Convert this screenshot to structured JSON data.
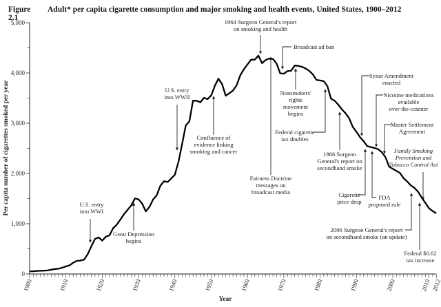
{
  "figure": {
    "number": "Figure 2.1",
    "title": "Adult* per capita cigarette consumption and major smoking and health events, United States, 1900–2012"
  },
  "chart_data": {
    "type": "line",
    "title": "Adult* per capita cigarette consumption and major smoking and health events, United States, 1900–2012",
    "xlabel": "Year",
    "ylabel": "Per capita number of cigarettes smoked per year",
    "xlim": [
      1900,
      2012
    ],
    "ylim": [
      0,
      5000
    ],
    "x_ticks": [
      "1900",
      "1910",
      "1920",
      "1930",
      "1940",
      "1950",
      "1960",
      "1970",
      "1980",
      "1990",
      "2000",
      "2010",
      "2012"
    ],
    "y_ticks": [
      "0",
      "1,000",
      "2,000",
      "3,000",
      "4,000",
      "5,000"
    ],
    "grid": false,
    "line_color": "#000000",
    "x": [
      1900,
      1901,
      1902,
      1903,
      1904,
      1905,
      1906,
      1907,
      1908,
      1909,
      1910,
      1911,
      1912,
      1913,
      1914,
      1915,
      1916,
      1917,
      1918,
      1919,
      1920,
      1921,
      1922,
      1923,
      1924,
      1925,
      1926,
      1927,
      1928,
      1929,
      1930,
      1931,
      1932,
      1933,
      1934,
      1935,
      1936,
      1937,
      1938,
      1939,
      1940,
      1941,
      1942,
      1943,
      1944,
      1945,
      1946,
      1947,
      1948,
      1949,
      1950,
      1951,
      1952,
      1953,
      1954,
      1955,
      1956,
      1957,
      1958,
      1959,
      1960,
      1961,
      1962,
      1963,
      1964,
      1965,
      1966,
      1967,
      1968,
      1969,
      1970,
      1971,
      1972,
      1973,
      1974,
      1975,
      1976,
      1977,
      1978,
      1979,
      1980,
      1981,
      1982,
      1983,
      1984,
      1985,
      1986,
      1987,
      1988,
      1989,
      1990,
      1991,
      1992,
      1993,
      1994,
      1995,
      1996,
      1997,
      1998,
      1999,
      2000,
      2001,
      2002,
      2003,
      2004,
      2005,
      2006,
      2007,
      2008,
      2009,
      2010,
      2011,
      2012
    ],
    "values": [
      54,
      53,
      60,
      64,
      66,
      70,
      86,
      99,
      105,
      125,
      151,
      173,
      223,
      260,
      267,
      285,
      395,
      551,
      697,
      727,
      665,
      742,
      770,
      911,
      982,
      1085,
      1191,
      1279,
      1366,
      1504,
      1485,
      1399,
      1245,
      1334,
      1483,
      1564,
      1754,
      1847,
      1830,
      1900,
      1976,
      2236,
      2585,
      2956,
      3039,
      3449,
      3446,
      3416,
      3505,
      3480,
      3552,
      3744,
      3886,
      3778,
      3546,
      3597,
      3650,
      3755,
      3953,
      4073,
      4171,
      4266,
      4265,
      4345,
      4194,
      4258,
      4287,
      4280,
      4186,
      3993,
      3985,
      4037,
      4043,
      4148,
      4141,
      4122,
      4091,
      4043,
      3970,
      3861,
      3851,
      3836,
      3739,
      3488,
      3446,
      3370,
      3274,
      3197,
      3096,
      2926,
      2828,
      2720,
      2641,
      2542,
      2524,
      2505,
      2482,
      2423,
      2320,
      2136,
      2092,
      2051,
      2008,
      1904,
      1838,
      1761,
      1712,
      1631,
      1515,
      1412,
      1305,
      1251,
      1207
    ],
    "annotations": [
      {
        "lines": [
          "U.S. entry",
          "into WWI"
        ],
        "year": 1917
      },
      {
        "lines": [
          "Great Depression",
          "begins"
        ],
        "year": 1929
      },
      {
        "lines": [
          "U.S. entry",
          "into WWII"
        ],
        "year": 1941
      },
      {
        "lines": [
          "Confluence of",
          "evidence linking",
          "smoking and cancer"
        ],
        "year": 1951
      },
      {
        "lines": [
          "1964 Surgeon General's report",
          "on smoking and health"
        ],
        "year": 1964
      },
      {
        "lines": [
          "Broadcast ad ban"
        ],
        "year": 1970
      },
      {
        "lines": [
          "Fairness Doctrine",
          "messages on",
          "broadcast media"
        ],
        "year": 1967
      },
      {
        "lines": [
          "Nonsmokers'",
          "rights",
          "movement",
          "begins"
        ],
        "year": 1973
      },
      {
        "lines": [
          "Federal cigarette",
          "tax doubles"
        ],
        "year": 1983
      },
      {
        "lines": [
          "1986 Surgeon",
          "General's report on",
          "secondhand smoke"
        ],
        "year": 1986
      },
      {
        "lines": [
          "Synar Amendment",
          "enacted"
        ],
        "year": 1992
      },
      {
        "lines": [
          "Nicotine medications",
          "available",
          "over-the-counter"
        ],
        "year": 1996
      },
      {
        "lines": [
          "Master Settlement",
          "Agreement"
        ],
        "year": 1998
      },
      {
        "lines": [
          "Family Smoking",
          "Prevention and",
          "Tobacco Control Act"
        ],
        "year": 2009,
        "italic": true
      },
      {
        "lines": [
          "Cigarette",
          "price drop"
        ],
        "year": 1993
      },
      {
        "lines": [
          "FDA",
          "proposed rule"
        ],
        "year": 1995
      },
      {
        "lines": [
          "2006 Surgeon General's report",
          "on secondhand smoke (an update)"
        ],
        "year": 2006
      },
      {
        "lines": [
          "Federal $0.62",
          "tax increase"
        ],
        "year": 2009
      }
    ]
  }
}
